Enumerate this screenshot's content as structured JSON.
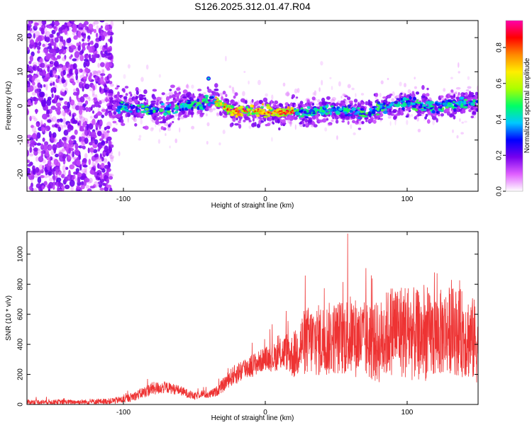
{
  "chart_data": [
    {
      "type": "heatmap",
      "title": "S126.2025.312.01.47.R04",
      "xlabel": "Height of straight line (km)",
      "ylabel": "Frequency (Hz)",
      "xlim": [
        -168,
        150
      ],
      "ylim": [
        -25,
        25
      ],
      "xticks": [
        -100,
        0,
        100
      ],
      "yticks": [
        -20,
        -10,
        0,
        10,
        20
      ],
      "colorbar": {
        "label": "Normalized spectral amplitude",
        "range": [
          0,
          0.95
        ],
        "ticks": [
          "0.0",
          "0.2",
          "0.4",
          "0.6",
          "0.8"
        ],
        "colors": [
          "#ffffff",
          "#e060ff",
          "#7700ee",
          "#0000ff",
          "#00c8ff",
          "#00ff66",
          "#aaff00",
          "#ffee00",
          "#ff8800",
          "#ff0000",
          "#ff00aa"
        ]
      },
      "ridge": {
        "x": [
          -110,
          -90,
          -70,
          -55,
          -45,
          -40,
          -35,
          -30,
          -25,
          -15,
          -5,
          0,
          10,
          20,
          30,
          40,
          50,
          60,
          70,
          80,
          90,
          100,
          110,
          120,
          130,
          140,
          150
        ],
        "freq": [
          -0.5,
          -0.5,
          -1.5,
          0.2,
          0.8,
          1.2,
          1.8,
          0.3,
          -1.2,
          -1.5,
          -1.5,
          -1.5,
          -2.0,
          -1.8,
          -2.3,
          -1.0,
          -1.2,
          -1.5,
          -2.3,
          -0.8,
          0.5,
          0.8,
          0.3,
          -0.5,
          0.4,
          1.2,
          0.8
        ]
      }
    },
    {
      "type": "line",
      "xlabel": "Height of straight line (km)",
      "ylabel": "SNR (10 * v/v)",
      "xlim": [
        -168,
        150
      ],
      "ylim": [
        0,
        1150
      ],
      "xticks": [
        -100,
        0,
        100
      ],
      "yticks": [
        0,
        200,
        400,
        600,
        800,
        1000
      ],
      "color": "#ee3333",
      "envelope": {
        "x": [
          -168,
          -130,
          -110,
          -100,
          -90,
          -80,
          -70,
          -60,
          -50,
          -45,
          -40,
          -35,
          -30,
          -25,
          -20,
          -15,
          -10,
          -5,
          0,
          5,
          10,
          15,
          20,
          25,
          30,
          40,
          50,
          60,
          70,
          80,
          90,
          100,
          110,
          120,
          130,
          140,
          150
        ],
        "mean": [
          15,
          15,
          20,
          30,
          60,
          100,
          110,
          90,
          50,
          70,
          60,
          80,
          120,
          170,
          200,
          230,
          250,
          270,
          300,
          300,
          320,
          340,
          300,
          380,
          400,
          400,
          420,
          430,
          400,
          380,
          480,
          450,
          420,
          430,
          470,
          440,
          380
        ],
        "spread": [
          25,
          25,
          30,
          40,
          50,
          70,
          60,
          50,
          40,
          40,
          40,
          50,
          70,
          90,
          110,
          120,
          120,
          120,
          120,
          140,
          160,
          200,
          230,
          320,
          360,
          380,
          380,
          420,
          400,
          420,
          480,
          500,
          460,
          450,
          450,
          450,
          430
        ]
      }
    }
  ]
}
